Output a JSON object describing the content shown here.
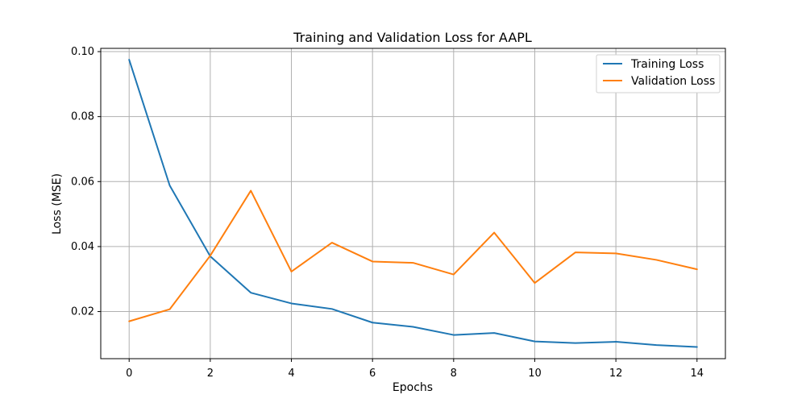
{
  "chart_data": {
    "type": "line",
    "title": "Training and Validation Loss for AAPL",
    "xlabel": "Epochs",
    "ylabel": "Loss (MSE)",
    "x": [
      0,
      1,
      2,
      3,
      4,
      5,
      6,
      7,
      8,
      9,
      10,
      11,
      12,
      13,
      14
    ],
    "xlim": [
      -0.7,
      14.7
    ],
    "ylim": [
      0.0055,
      0.101
    ],
    "xticks": [
      0,
      2,
      4,
      6,
      8,
      10,
      12,
      14
    ],
    "xtick_labels": [
      "0",
      "2",
      "4",
      "6",
      "8",
      "10",
      "12",
      "14"
    ],
    "yticks": [
      0.02,
      0.04,
      0.06,
      0.08,
      0.1
    ],
    "ytick_labels": [
      "0.02",
      "0.04",
      "0.06",
      "0.08",
      "0.10"
    ],
    "grid": true,
    "legend_position": "top-right",
    "series": [
      {
        "name": "Training Loss",
        "color": "#1f77b4",
        "values": [
          0.0975,
          0.0588,
          0.037,
          0.0258,
          0.0225,
          0.0208,
          0.0166,
          0.0153,
          0.0128,
          0.0134,
          0.0108,
          0.0103,
          0.0107,
          0.0097,
          0.0091
        ]
      },
      {
        "name": "Validation Loss",
        "color": "#ff7f0e",
        "values": [
          0.017,
          0.0207,
          0.0372,
          0.0572,
          0.0323,
          0.0412,
          0.0354,
          0.035,
          0.0314,
          0.0443,
          0.0288,
          0.0382,
          0.0379,
          0.0359,
          0.033
        ]
      }
    ]
  }
}
